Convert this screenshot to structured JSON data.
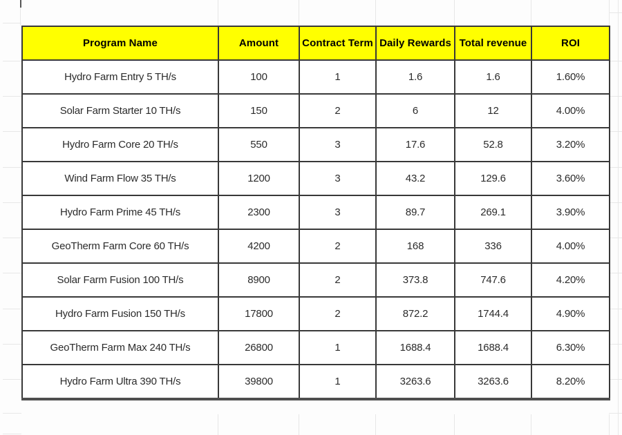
{
  "chart_data": {
    "type": "table",
    "columns": [
      "Program Name",
      "Amount",
      "Contract Term",
      "Daily Rewards",
      "Total revenue",
      "ROI"
    ],
    "rows": [
      [
        "Hydro Farm Entry 5 TH/s",
        "100",
        "1",
        "1.6",
        "1.6",
        "1.60%"
      ],
      [
        "Solar Farm Starter 10 TH/s",
        "150",
        "2",
        "6",
        "12",
        "4.00%"
      ],
      [
        "Hydro Farm Core 20 TH/s",
        "550",
        "3",
        "17.6",
        "52.8",
        "3.20%"
      ],
      [
        "Wind Farm Flow 35 TH/s",
        "1200",
        "3",
        "43.2",
        "129.6",
        "3.60%"
      ],
      [
        "Hydro Farm Prime 45 TH/s",
        "2300",
        "3",
        "89.7",
        "269.1",
        "3.90%"
      ],
      [
        "GeoTherm Farm Core 60 TH/s",
        "4200",
        "2",
        "168",
        "336",
        "4.00%"
      ],
      [
        "Solar Farm Fusion 100 TH/s",
        "8900",
        "2",
        "373.8",
        "747.6",
        "4.20%"
      ],
      [
        "Hydro Farm Fusion 150 TH/s",
        "17800",
        "2",
        "872.2",
        "1744.4",
        "4.90%"
      ],
      [
        "GeoTherm Farm Max 240 TH/s",
        "26800",
        "1",
        "1688.4",
        "1688.4",
        "6.30%"
      ],
      [
        "Hydro Farm Ultra 390 TH/s",
        "39800",
        "1",
        "3263.6",
        "3263.6",
        "8.20%"
      ]
    ]
  },
  "styles": {
    "header_bg": "#ffff00",
    "header_text": "#000000",
    "cell_text": "#2b2b2b",
    "border": "#383838",
    "gridline": "#e7e7e7"
  }
}
